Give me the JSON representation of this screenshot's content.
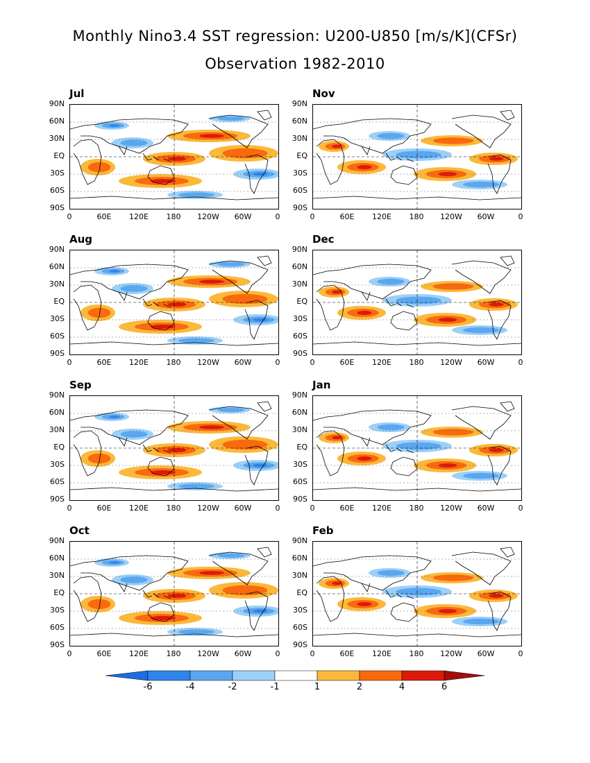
{
  "title": "Monthly Nino3.4 SST regression: U200-U850 [m/s/K](CFSr)",
  "subtitle": "Observation 1982-2010",
  "lat_ticks": [
    "90N",
    "60N",
    "30N",
    "EQ",
    "30S",
    "60S",
    "90S"
  ],
  "lon_ticks": [
    "0",
    "60E",
    "120E",
    "180",
    "120W",
    "60W",
    "0"
  ],
  "panels": [
    {
      "month": "Jul"
    },
    {
      "month": "Nov"
    },
    {
      "month": "Aug"
    },
    {
      "month": "Dec"
    },
    {
      "month": "Sep"
    },
    {
      "month": "Jan"
    },
    {
      "month": "Oct"
    },
    {
      "month": "Feb"
    }
  ],
  "colorbar": {
    "labels": [
      "-6",
      "-4",
      "-2",
      "-1",
      "1",
      "2",
      "4",
      "6"
    ],
    "colors": [
      "#1e6ce0",
      "#2f84ec",
      "#5aa7f0",
      "#9bd0f8",
      "#ffffff",
      "#fbb83b",
      "#f96a0d",
      "#dd1a0a",
      "#a50c0c"
    ]
  }
}
